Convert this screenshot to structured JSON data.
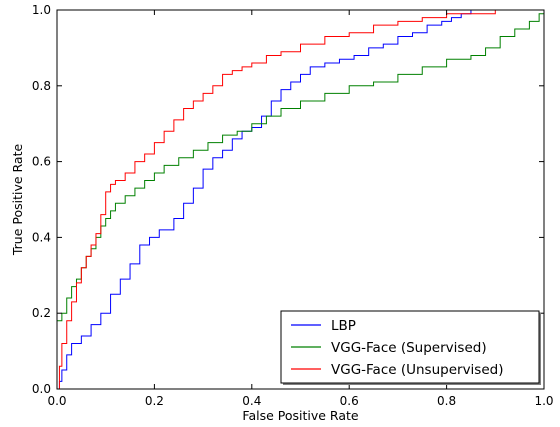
{
  "chart_data": {
    "type": "line",
    "title": "",
    "xlabel": "False Positive Rate",
    "ylabel": "True Positive Rate",
    "xlim": [
      0.0,
      1.0
    ],
    "ylim": [
      0.0,
      1.0
    ],
    "xticks": [
      "0.0",
      "0.2",
      "0.4",
      "0.6",
      "0.8",
      "1.0"
    ],
    "yticks": [
      "0.0",
      "0.2",
      "0.4",
      "0.6",
      "0.8",
      "1.0"
    ],
    "grid": false,
    "legend_position": "lower-right",
    "series": [
      {
        "name": "LBP",
        "color": "#0000ff",
        "x": [
          0.0,
          0.005,
          0.01,
          0.02,
          0.03,
          0.05,
          0.07,
          0.09,
          0.11,
          0.13,
          0.15,
          0.17,
          0.19,
          0.21,
          0.24,
          0.26,
          0.28,
          0.3,
          0.32,
          0.34,
          0.36,
          0.38,
          0.4,
          0.42,
          0.44,
          0.46,
          0.48,
          0.5,
          0.52,
          0.55,
          0.58,
          0.61,
          0.64,
          0.67,
          0.7,
          0.73,
          0.76,
          0.79,
          0.81,
          0.83,
          0.85,
          0.9,
          0.95,
          1.0
        ],
        "y": [
          0.0,
          0.02,
          0.05,
          0.09,
          0.12,
          0.14,
          0.17,
          0.2,
          0.25,
          0.29,
          0.33,
          0.38,
          0.4,
          0.42,
          0.45,
          0.49,
          0.53,
          0.58,
          0.61,
          0.63,
          0.66,
          0.68,
          0.69,
          0.72,
          0.76,
          0.79,
          0.81,
          0.83,
          0.85,
          0.86,
          0.87,
          0.88,
          0.9,
          0.91,
          0.93,
          0.94,
          0.96,
          0.97,
          0.98,
          0.99,
          1.0,
          1.0,
          1.0,
          1.0
        ]
      },
      {
        "name": "VGG-Face (Supervised)",
        "color": "#008000",
        "x": [
          0.0,
          0.01,
          0.02,
          0.03,
          0.04,
          0.05,
          0.06,
          0.07,
          0.08,
          0.09,
          0.1,
          0.11,
          0.12,
          0.14,
          0.16,
          0.18,
          0.2,
          0.22,
          0.25,
          0.28,
          0.31,
          0.34,
          0.37,
          0.4,
          0.43,
          0.46,
          0.5,
          0.55,
          0.6,
          0.65,
          0.7,
          0.75,
          0.8,
          0.85,
          0.88,
          0.91,
          0.94,
          0.97,
          0.99,
          1.0
        ],
        "y": [
          0.18,
          0.2,
          0.24,
          0.27,
          0.29,
          0.32,
          0.35,
          0.37,
          0.4,
          0.43,
          0.45,
          0.47,
          0.49,
          0.51,
          0.53,
          0.55,
          0.57,
          0.59,
          0.61,
          0.63,
          0.65,
          0.67,
          0.68,
          0.7,
          0.72,
          0.74,
          0.76,
          0.78,
          0.8,
          0.81,
          0.83,
          0.85,
          0.87,
          0.88,
          0.9,
          0.93,
          0.95,
          0.97,
          0.99,
          1.0
        ]
      },
      {
        "name": "VGG-Face (Unsupervised)",
        "color": "#ff0000",
        "x": [
          0.0,
          0.005,
          0.01,
          0.02,
          0.03,
          0.04,
          0.05,
          0.06,
          0.07,
          0.08,
          0.09,
          0.1,
          0.11,
          0.12,
          0.14,
          0.16,
          0.18,
          0.2,
          0.22,
          0.24,
          0.26,
          0.28,
          0.3,
          0.32,
          0.34,
          0.36,
          0.38,
          0.4,
          0.43,
          0.46,
          0.5,
          0.55,
          0.6,
          0.65,
          0.7,
          0.75,
          0.8,
          0.85,
          0.9,
          0.95,
          1.0
        ],
        "y": [
          0.0,
          0.06,
          0.12,
          0.18,
          0.23,
          0.28,
          0.32,
          0.35,
          0.38,
          0.41,
          0.46,
          0.52,
          0.54,
          0.55,
          0.57,
          0.6,
          0.62,
          0.65,
          0.68,
          0.71,
          0.74,
          0.76,
          0.78,
          0.8,
          0.83,
          0.84,
          0.85,
          0.86,
          0.88,
          0.89,
          0.91,
          0.93,
          0.94,
          0.96,
          0.97,
          0.98,
          0.99,
          0.99,
          1.0,
          1.0,
          1.0
        ]
      }
    ]
  }
}
